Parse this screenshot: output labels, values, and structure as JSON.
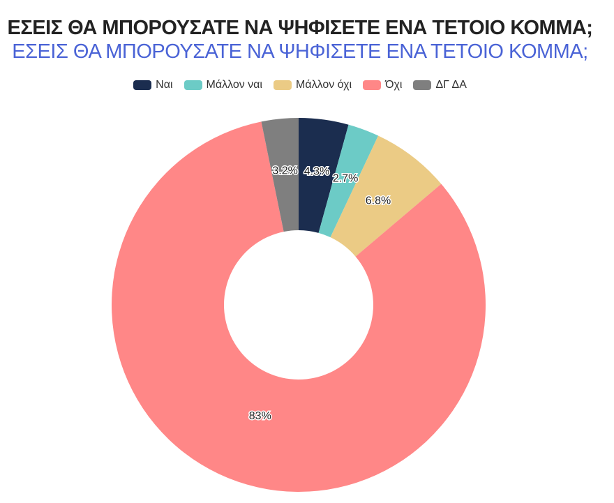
{
  "title": "ΕΣΕΙΣ ΘΑ ΜΠΟΡΟΥΣΑΤΕ ΝΑ ΨΗΦΙΣΕΤΕ ΕΝΑ ΤΕΤΟΙΟ ΚΟΜΜΑ;",
  "subtitle": "ΕΣΕΙΣ ΘΑ ΜΠΟΡΟΥΣΑΤΕ ΝΑ ΨΗΦΙΣΕΤΕ ΕΝΑ ΤΕΤΟΙΟ ΚΟΜΜΑ;",
  "colors": {
    "title": "#222222",
    "subtitle": "#4a63d6"
  },
  "chart_data": {
    "type": "pie",
    "variant": "donut",
    "legend_position": "top",
    "categories": [
      "Ναι",
      "Μάλλον ναι",
      "Μάλλον όχι",
      "Όχι",
      "ΔΓ ΔΑ"
    ],
    "values": [
      4.3,
      2.7,
      6.8,
      83,
      3.2
    ],
    "data_labels": [
      "4.3%",
      "2.7%",
      "6.8%",
      "83%",
      "3.2%"
    ],
    "colors": [
      "#1b2d4f",
      "#6ccbc6",
      "#ebcb85",
      "#ff8787",
      "#7f7f7f"
    ]
  }
}
